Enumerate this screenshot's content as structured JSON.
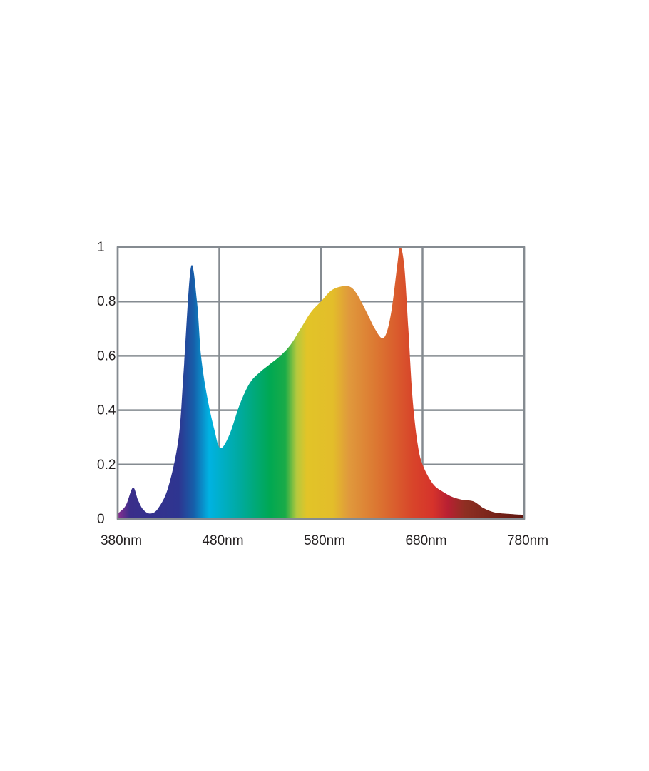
{
  "chart_data": {
    "type": "area",
    "title": "",
    "xlabel": "",
    "ylabel": "",
    "xlim": [
      380,
      780
    ],
    "ylim": [
      0,
      1
    ],
    "grid": true,
    "x_ticks": [
      380,
      480,
      580,
      680,
      780
    ],
    "x_tick_labels": [
      "380nm",
      "480nm",
      "580nm",
      "680nm",
      "780nm"
    ],
    "y_ticks": [
      0,
      0.2,
      0.4,
      0.6,
      0.8,
      1
    ],
    "y_tick_labels": [
      "0",
      "0.2",
      "0.4",
      "0.6",
      "0.8",
      "1"
    ],
    "grid_color": "#858b91",
    "fill": "visible-spectrum gradient",
    "spectrum_colors": [
      {
        "nm": 380,
        "color": "#8a2e8f"
      },
      {
        "nm": 392,
        "color": "#3a2e8a"
      },
      {
        "nm": 440,
        "color": "#2e3590"
      },
      {
        "nm": 455,
        "color": "#1660aa"
      },
      {
        "nm": 470,
        "color": "#00b2e2"
      },
      {
        "nm": 500,
        "color": "#00aaa0"
      },
      {
        "nm": 530,
        "color": "#00a852"
      },
      {
        "nm": 545,
        "color": "#1aab48"
      },
      {
        "nm": 556,
        "color": "#b4c93e"
      },
      {
        "nm": 566,
        "color": "#e2c428"
      },
      {
        "nm": 592,
        "color": "#e3bd2a"
      },
      {
        "nm": 607,
        "color": "#e09a3c"
      },
      {
        "nm": 640,
        "color": "#db7030"
      },
      {
        "nm": 670,
        "color": "#d8452a"
      },
      {
        "nm": 690,
        "color": "#d6332b"
      },
      {
        "nm": 705,
        "color": "#b82032"
      },
      {
        "nm": 722,
        "color": "#8e2f22"
      },
      {
        "nm": 780,
        "color": "#5e1610"
      }
    ],
    "x": [
      380,
      388,
      395,
      400,
      405,
      412,
      420,
      430,
      440,
      445,
      452,
      458,
      462,
      468,
      475,
      481,
      490,
      500,
      510,
      520,
      530,
      540,
      550,
      560,
      570,
      580,
      590,
      600,
      608,
      615,
      625,
      633,
      640,
      645,
      650,
      655,
      658,
      662,
      666,
      670,
      675,
      680,
      690,
      700,
      710,
      720,
      730,
      740,
      750,
      760,
      780
    ],
    "values": [
      0.02,
      0.05,
      0.115,
      0.07,
      0.035,
      0.02,
      0.04,
      0.12,
      0.3,
      0.55,
      0.925,
      0.8,
      0.6,
      0.45,
      0.33,
      0.26,
      0.31,
      0.42,
      0.5,
      0.54,
      0.57,
      0.6,
      0.64,
      0.7,
      0.76,
      0.8,
      0.84,
      0.855,
      0.855,
      0.83,
      0.76,
      0.7,
      0.665,
      0.69,
      0.78,
      0.93,
      1.0,
      0.93,
      0.7,
      0.45,
      0.28,
      0.2,
      0.13,
      0.1,
      0.08,
      0.07,
      0.065,
      0.04,
      0.025,
      0.02,
      0.015
    ]
  }
}
